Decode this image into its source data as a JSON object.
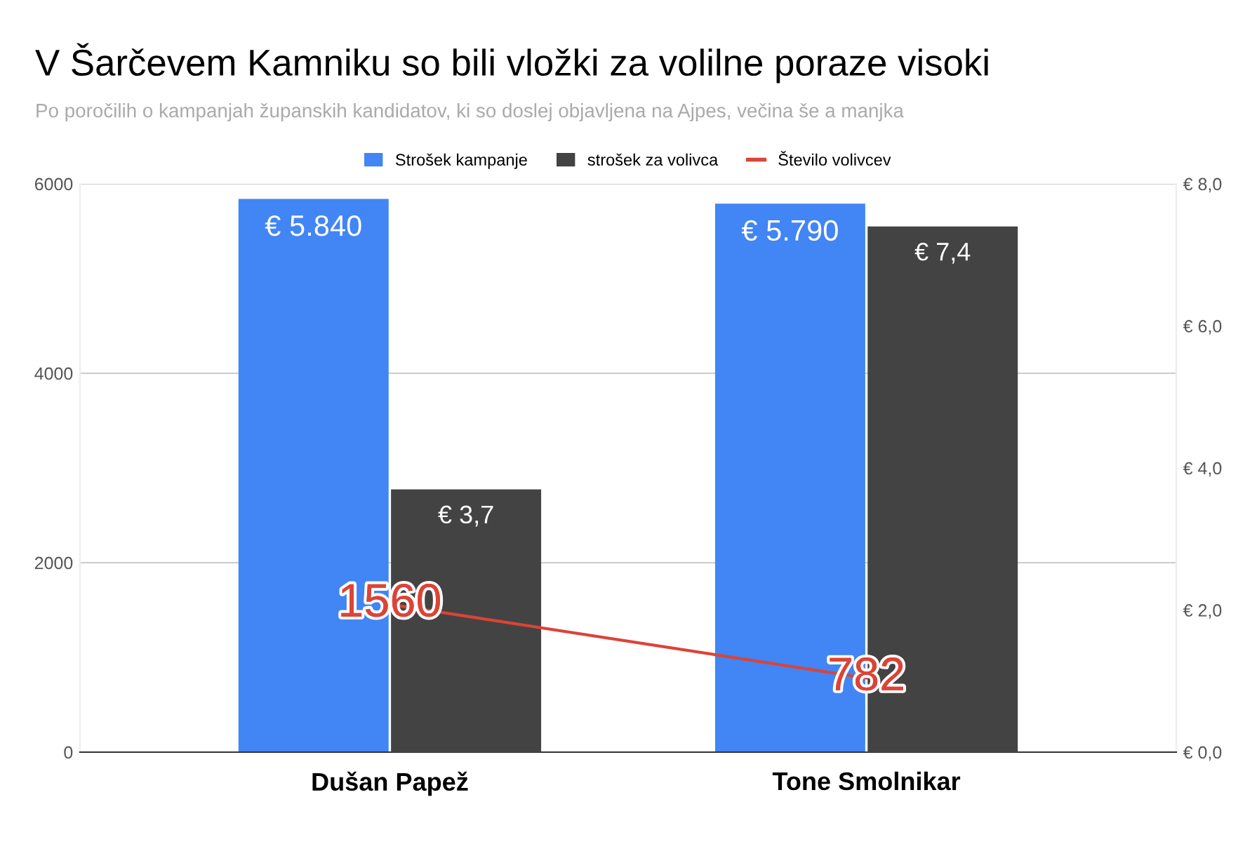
{
  "chart_data": {
    "type": "bar",
    "title": "V Šarčevem Kamniku so bili vložki za volilne poraze visoki",
    "subtitle": "Po poročilih o kampanjah županskih kandidatov, ki so doslej objavljena na Ajpes, večina še a manjka",
    "categories": [
      "Dušan Papež",
      "Tone Smolnikar"
    ],
    "series": [
      {
        "name": "Strošek kampanje",
        "color": "#4285f4",
        "values": [
          5840,
          5790
        ],
        "value_labels": [
          "€ 5.840",
          "€ 5.790"
        ]
      },
      {
        "name": "strošek za volivca",
        "color": "#434343",
        "axis": "y2",
        "values": [
          3.7,
          7.4
        ],
        "value_labels": [
          "€ 3,7",
          "€ 7,4"
        ]
      },
      {
        "name": "Število volivcev",
        "type": "line",
        "color": "#db4437",
        "values": [
          1560,
          782
        ],
        "value_labels": [
          "1560",
          "782"
        ]
      }
    ],
    "ylim": [
      0,
      6000
    ],
    "yticks": [
      0,
      2000,
      4000,
      6000
    ],
    "y2lim": [
      0,
      8
    ],
    "y2ticks": [
      {
        "value": 0,
        "label": "€ 0,0"
      },
      {
        "value": 2,
        "label": "€ 2,0"
      },
      {
        "value": 4,
        "label": "€ 4,0"
      },
      {
        "value": 6,
        "label": "€ 6,0"
      },
      {
        "value": 8,
        "label": "€ 8,0"
      }
    ],
    "grid": "y",
    "legend": "top"
  }
}
